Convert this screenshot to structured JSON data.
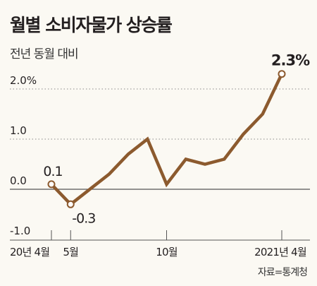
{
  "title": "월별 소비자물가 상승률",
  "subtitle": "전년 동월 대비",
  "source": "자료=통계청",
  "colors": {
    "line": "#8c5a2e",
    "background": "#fbf9f3",
    "text": "#231f20",
    "grid": "#888888"
  },
  "chart_data": {
    "type": "line",
    "title": "월별 소비자물가 상승률",
    "subtitle": "전년 동월 대비",
    "ylim": [
      -1.0,
      2.4
    ],
    "yticks": [
      {
        "value": 2.0,
        "label": "2.0%"
      },
      {
        "value": 1.0,
        "label": "1.0"
      },
      {
        "value": 0.0,
        "label": "0.0"
      },
      {
        "value": -1.0,
        "label": "-1.0"
      }
    ],
    "grid": true,
    "x": [
      "2020-04",
      "2020-05",
      "2020-06",
      "2020-07",
      "2020-08",
      "2020-09",
      "2020-10",
      "2020-11",
      "2020-12",
      "2021-01",
      "2021-02",
      "2021-03",
      "2021-04"
    ],
    "xtick_labels": [
      {
        "index": 0,
        "label": "20년 4월"
      },
      {
        "index": 1,
        "label": "5월"
      },
      {
        "index": 6,
        "label": "10월"
      },
      {
        "index": 12,
        "label": "2021년 4월"
      }
    ],
    "series": [
      {
        "values": [
          0.1,
          -0.3,
          0.0,
          0.3,
          0.7,
          1.0,
          0.1,
          0.6,
          0.5,
          0.6,
          1.1,
          1.5,
          2.3
        ]
      }
    ],
    "annotations": [
      {
        "index": 0,
        "label": "0.1"
      },
      {
        "index": 1,
        "label": "-0.3"
      },
      {
        "index": 12,
        "label": "2.3%"
      }
    ]
  }
}
